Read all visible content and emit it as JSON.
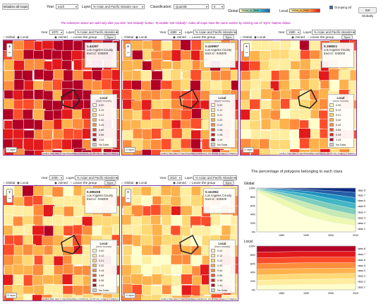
{
  "toolbar": {
    "init_label": "Initialize all maps",
    "year_label": "Year:",
    "year_value": "each",
    "layer_label": "Layer:",
    "layer_value": "% Asian and Pacific Islander race",
    "class_label": "Classification:",
    "class_value": "Quantile",
    "class_n": "8",
    "global_label": "Global:",
    "global_ramp": "Yellow_to_Blue",
    "local_label": "Local:",
    "local_ramp": "Yellow_to_Red",
    "grouping_label": "Grouping all",
    "set_globally": "Set Globally",
    "note": "The selections above are valid only after you click \"Set Globally\" button. To enable \"Set Globally\", make all maps have the same extents by clicking one of \"Sync\" buttons below."
  },
  "panels": [
    {
      "year": "1970",
      "layer": "% Asian and Pacific Islander race",
      "info_value": "1.44397",
      "info_place": "Los Angeles County",
      "info_tract": "tract id : 535300",
      "grid_seed": 3
    },
    {
      "year": "1980",
      "layer": "% Asian and Pacific Islander race",
      "info_value": "0.429997",
      "info_place": "Los Angeles County",
      "info_tract": "tract id : 535300",
      "grid_seed": 1
    },
    {
      "year": "1990",
      "layer": "% Asian and Pacific Islander race",
      "info_value": "0.188821",
      "info_place": "Los Angeles County",
      "info_tract": "tract id : 535300",
      "grid_seed": 0
    },
    {
      "year": "2000",
      "layer": "% Asian and Pacific Islander race",
      "info_value": "0.285228",
      "info_place": "Los Angeles County",
      "info_tract": "tract id : 535300",
      "grid_seed": 0
    },
    {
      "year": "2010",
      "layer": "% Asian and Pacific Islander race",
      "info_value": "0.111962",
      "info_place": "Los Angeles County",
      "info_tract": "tract id : 535300",
      "grid_seed": 0
    }
  ],
  "panel_controls": {
    "global": "Global",
    "local": "Local",
    "joined": "Joined",
    "leave": "Leave the group",
    "sync": "Sync",
    "layer_toggle": "layer"
  },
  "legend": {
    "title": "Local",
    "subtitle": "(lower bounds)",
    "labels": [
      "0.00",
      "0.12",
      "0.21",
      "0.32",
      "0.44",
      "0.68",
      "0.98",
      "1.44",
      "No Data"
    ],
    "colors": [
      "#ffffcc",
      "#ffeda0",
      "#fed976",
      "#feb24c",
      "#fd8d3c",
      "#fc4e2a",
      "#e31a1c",
      "#b10026",
      "#cccccc"
    ]
  },
  "attribution": "Leaflet | Map data © OpenStreetMap contributors, CC-BY-SA, Imagery © Mapbox",
  "chart_title": "The percentage of polygons belonging to each class",
  "chart_data": [
    {
      "type": "area",
      "title": "Global",
      "x": [
        1970,
        1980,
        1990,
        2000,
        2010
      ],
      "x_ticks": [
        "1980",
        "1990",
        "2000",
        "2010"
      ],
      "y_ticks": [
        "0%",
        "20%",
        "40%",
        "60%",
        "80%",
        "100%"
      ],
      "ylim": [
        0,
        100
      ],
      "series": [
        {
          "name": "class 1",
          "color": "#ffffd9",
          "values": [
            92,
            62,
            36,
            22,
            14
          ]
        },
        {
          "name": "class 2",
          "color": "#edf8b1",
          "values": [
            4,
            14,
            18,
            15,
            12
          ]
        },
        {
          "name": "class 3",
          "color": "#c7e9b4",
          "values": [
            2,
            8,
            13,
            14,
            13
          ]
        },
        {
          "name": "class 4",
          "color": "#7fcdbb",
          "values": [
            1,
            6,
            11,
            13,
            13
          ]
        },
        {
          "name": "class 5",
          "color": "#41b6c4",
          "values": [
            0.5,
            4,
            9,
            12,
            13
          ]
        },
        {
          "name": "class 6",
          "color": "#1d91c0",
          "values": [
            0.3,
            3,
            6,
            10,
            13
          ]
        },
        {
          "name": "class 7",
          "color": "#225ea8",
          "values": [
            0.1,
            2,
            4,
            8,
            12
          ]
        },
        {
          "name": "class 8",
          "color": "#0c2c84",
          "values": [
            0.1,
            1,
            3,
            6,
            10
          ]
        }
      ]
    },
    {
      "type": "area",
      "title": "Local",
      "x": [
        1970,
        1980,
        1990,
        2000,
        2010
      ],
      "x_ticks": [
        "1980",
        "1990",
        "2000",
        "2010"
      ],
      "y_ticks": [
        "0%",
        "20%",
        "40%",
        "60%",
        "80%",
        "100%"
      ],
      "ylim": [
        0,
        100
      ],
      "series": [
        {
          "name": "class 1",
          "color": "#ffffcc",
          "values": [
            10,
            11,
            12,
            12,
            13
          ]
        },
        {
          "name": "class 2",
          "color": "#ffeda0",
          "values": [
            12,
            12,
            12,
            13,
            13
          ]
        },
        {
          "name": "class 3",
          "color": "#fed976",
          "values": [
            12,
            12,
            13,
            12,
            12
          ]
        },
        {
          "name": "class 4",
          "color": "#feb24c",
          "values": [
            13,
            13,
            12,
            12,
            12
          ]
        },
        {
          "name": "class 5",
          "color": "#fd8d3c",
          "values": [
            13,
            13,
            13,
            13,
            12
          ]
        },
        {
          "name": "class 6",
          "color": "#fc4e2a",
          "values": [
            13,
            13,
            13,
            13,
            13
          ]
        },
        {
          "name": "class 7",
          "color": "#e31a1c",
          "values": [
            13,
            13,
            13,
            13,
            13
          ]
        },
        {
          "name": "class 8",
          "color": "#b10026",
          "values": [
            14,
            13,
            12,
            12,
            12
          ]
        }
      ]
    }
  ]
}
